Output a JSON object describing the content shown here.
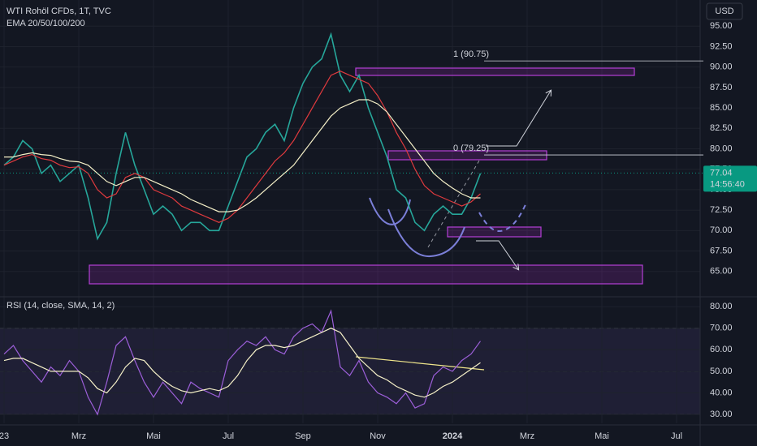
{
  "chart_data": [
    {
      "type": "line",
      "title": "WTI Rohöl CFDs, 1T, TVC",
      "subtitle": "EMA 20/50/100/200",
      "currency": "USD",
      "ylim": [
        62,
        98.2
      ],
      "yticks": [
        {
          "value": 65,
          "label": "65.00"
        },
        {
          "value": 67.5,
          "label": "67.50"
        },
        {
          "value": 70,
          "label": "70.00"
        },
        {
          "value": 72.5,
          "label": "72.50"
        },
        {
          "value": 75,
          "label": "75.00"
        },
        {
          "value": 77.5,
          "label": "77.50"
        },
        {
          "value": 80,
          "label": "80.00"
        },
        {
          "value": 82.5,
          "label": "82.50"
        },
        {
          "value": 85,
          "label": "85.00"
        },
        {
          "value": 87.5,
          "label": "87.50"
        },
        {
          "value": 90,
          "label": "90.00"
        },
        {
          "value": 92.5,
          "label": "92.50"
        },
        {
          "value": 95,
          "label": "95.00"
        }
      ],
      "grid": true,
      "series": [
        {
          "color": "#26a69a",
          "values": [
            78,
            79,
            81,
            80,
            77,
            78,
            76,
            77,
            78,
            74,
            69,
            71,
            77,
            82,
            78,
            75,
            72,
            73,
            72,
            70,
            71,
            71,
            70,
            70,
            73,
            76,
            79,
            80,
            82,
            83,
            81,
            85,
            88,
            90,
            91,
            94,
            89,
            87,
            89,
            85,
            82,
            79,
            75,
            74,
            71,
            70,
            72,
            73,
            72,
            72,
            74,
            77,
            null,
            null,
            null,
            null,
            null,
            null,
            null,
            null,
            null,
            null,
            null,
            null,
            null,
            null,
            null,
            null,
            null,
            null,
            null,
            null,
            null,
            null,
            null
          ]
        },
        {
          "color": "#e03a3e",
          "values": [
            78,
            78.5,
            79,
            79.3,
            78.8,
            78.6,
            78,
            77.7,
            77.8,
            77,
            75,
            74,
            74.5,
            76.5,
            77,
            76.5,
            75,
            74.5,
            74,
            73,
            72.5,
            72,
            71.5,
            71,
            71.5,
            72.5,
            74,
            75.5,
            77,
            78.5,
            79.5,
            81,
            83,
            85,
            87,
            89,
            89.5,
            89,
            88.5,
            88,
            86.5,
            84.5,
            82,
            80,
            77.5,
            75.5,
            74.5,
            74,
            73.5,
            73,
            73.5,
            74.5,
            null,
            null,
            null,
            null,
            null,
            null,
            null,
            null,
            null,
            null,
            null,
            null,
            null,
            null,
            null,
            null,
            null,
            null,
            null,
            null,
            null,
            null,
            null
          ]
        },
        {
          "color": "#f5f0c8",
          "values": [
            79,
            79,
            79.3,
            79.5,
            79.3,
            79.2,
            78.8,
            78.5,
            78.4,
            78,
            77,
            76,
            75.5,
            76,
            76.5,
            76.5,
            76,
            75.5,
            75,
            74.5,
            73.8,
            73.3,
            72.8,
            72.3,
            72.3,
            72.5,
            73.2,
            74,
            75,
            76,
            77,
            78,
            79.5,
            81,
            82.5,
            84,
            85,
            85.5,
            86,
            86,
            85.5,
            84.5,
            83,
            81.5,
            80,
            78.5,
            77,
            76,
            75.2,
            74.5,
            74,
            74,
            null,
            null,
            null,
            null,
            null,
            null,
            null,
            null,
            null,
            null,
            null,
            null,
            null,
            null,
            null,
            null,
            null,
            null,
            null,
            null,
            null,
            null,
            null
          ]
        }
      ],
      "last_price": 77.04,
      "countdown": "14:56:40",
      "last_price_color": "#089981",
      "fib_levels": [
        {
          "label": "1 (90.75)",
          "value": 90.75
        },
        {
          "label": "0 (79.25)",
          "value": 79.25
        }
      ]
    },
    {
      "type": "line",
      "title": "RSI (14, close, SMA, 14, 2)",
      "categories": [
        "23",
        null,
        null,
        null,
        null,
        null,
        null,
        null,
        "Mrz",
        null,
        null,
        null,
        null,
        null,
        null,
        null,
        "Mai",
        null,
        null,
        null,
        null,
        null,
        null,
        null,
        "Jul",
        null,
        null,
        null,
        null,
        null,
        null,
        null,
        "Sep",
        null,
        null,
        null,
        null,
        null,
        null,
        null,
        "Nov",
        null,
        null,
        null,
        null,
        null,
        null,
        null,
        "2024",
        null,
        null,
        null,
        null,
        null,
        null,
        null,
        "Mrz",
        null,
        null,
        null,
        null,
        null,
        null,
        null,
        "Mai",
        null,
        null,
        null,
        null,
        null,
        null,
        null,
        "Jul",
        null,
        null
      ],
      "ylim": [
        25.9,
        83.8
      ],
      "yticks": [
        {
          "value": 30,
          "label": "30.00"
        },
        {
          "value": 40,
          "label": "40.00"
        },
        {
          "value": 50,
          "label": "50.00"
        },
        {
          "value": 60,
          "label": "60.00"
        },
        {
          "value": 70,
          "label": "70.00"
        },
        {
          "value": 80,
          "label": "80.00"
        }
      ],
      "band": [
        30,
        70
      ],
      "dashed_levels": [
        70,
        50,
        30
      ],
      "series": [
        {
          "color": "#9c5fd9",
          "values": [
            58,
            62,
            55,
            50,
            45,
            52,
            48,
            55,
            50,
            38,
            30,
            45,
            62,
            66,
            55,
            45,
            38,
            45,
            40,
            35,
            45,
            42,
            40,
            38,
            55,
            60,
            64,
            62,
            66,
            60,
            58,
            66,
            70,
            72,
            68,
            78,
            52,
            48,
            55,
            45,
            40,
            38,
            35,
            40,
            33,
            35,
            48,
            52,
            50,
            55,
            58,
            64,
            null,
            null,
            null,
            null,
            null,
            null,
            null,
            null,
            null,
            null,
            null,
            null,
            null,
            null,
            null,
            null,
            null,
            null,
            null,
            null,
            null,
            null,
            null
          ]
        },
        {
          "color": "#f5f0c8",
          "values": [
            55,
            56,
            56,
            54,
            52,
            50,
            50,
            50,
            50,
            47,
            42,
            40,
            45,
            52,
            56,
            55,
            50,
            46,
            43,
            41,
            40,
            41,
            42,
            41,
            43,
            48,
            55,
            60,
            62,
            62,
            61,
            62,
            64,
            66,
            68,
            70,
            68,
            62,
            56,
            52,
            48,
            46,
            43,
            41,
            39,
            38,
            40,
            43,
            45,
            48,
            51,
            54,
            null,
            null,
            null,
            null,
            null,
            null,
            null,
            null,
            null,
            null,
            null,
            null,
            null,
            null,
            null,
            null,
            null,
            null,
            null,
            null,
            null,
            null,
            null
          ]
        }
      ]
    }
  ]
}
